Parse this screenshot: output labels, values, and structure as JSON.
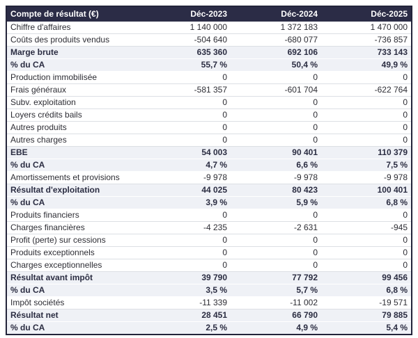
{
  "colors": {
    "header_bg": "#2b2c46",
    "header_text": "#ffffff",
    "row_bg": "#ffffff",
    "emphasis_row_bg": "#eff1f6",
    "text": "#2d2d34",
    "emphasis_text": "#2b2d42",
    "border_dark": "#23243a",
    "row_divider": "#dcdfe4"
  },
  "table": {
    "columns": [
      "Compte de résultat (€)",
      "Déc-2023",
      "Déc-2024",
      "Déc-2025"
    ],
    "rows": [
      {
        "label": "Chiffre d'affaires",
        "values": [
          "1 140 000",
          "1 372 183",
          "1 470 000"
        ],
        "emphasis": false
      },
      {
        "label": "Coûts des produits vendus",
        "values": [
          "-504 640",
          "-680 077",
          "-736 857"
        ],
        "emphasis": false
      },
      {
        "label": "Marge brute",
        "values": [
          "635 360",
          "692 106",
          "733 143"
        ],
        "emphasis": true
      },
      {
        "label": "% du CA",
        "values": [
          "55,7 %",
          "50,4 %",
          "49,9 %"
        ],
        "emphasis": true
      },
      {
        "label": "Production immobilisée",
        "values": [
          "0",
          "0",
          "0"
        ],
        "emphasis": false
      },
      {
        "label": "Frais généraux",
        "values": [
          "-581 357",
          "-601 704",
          "-622 764"
        ],
        "emphasis": false
      },
      {
        "label": "Subv. exploitation",
        "values": [
          "0",
          "0",
          "0"
        ],
        "emphasis": false
      },
      {
        "label": "Loyers crédits bails",
        "values": [
          "0",
          "0",
          "0"
        ],
        "emphasis": false
      },
      {
        "label": "Autres produits",
        "values": [
          "0",
          "0",
          "0"
        ],
        "emphasis": false
      },
      {
        "label": "Autres charges",
        "values": [
          "0",
          "0",
          "0"
        ],
        "emphasis": false
      },
      {
        "label": "EBE",
        "values": [
          "54 003",
          "90 401",
          "110 379"
        ],
        "emphasis": true
      },
      {
        "label": "% du CA",
        "values": [
          "4,7 %",
          "6,6 %",
          "7,5 %"
        ],
        "emphasis": true
      },
      {
        "label": "Amortissements et provisions",
        "values": [
          "-9 978",
          "-9 978",
          "-9 978"
        ],
        "emphasis": false
      },
      {
        "label": "Résultat d'exploitation",
        "values": [
          "44 025",
          "80 423",
          "100 401"
        ],
        "emphasis": true
      },
      {
        "label": "% du CA",
        "values": [
          "3,9 %",
          "5,9 %",
          "6,8 %"
        ],
        "emphasis": true
      },
      {
        "label": "Produits financiers",
        "values": [
          "0",
          "0",
          "0"
        ],
        "emphasis": false
      },
      {
        "label": "Charges financières",
        "values": [
          "-4 235",
          "-2 631",
          "-945"
        ],
        "emphasis": false
      },
      {
        "label": "Profit (perte) sur cessions",
        "values": [
          "0",
          "0",
          "0"
        ],
        "emphasis": false
      },
      {
        "label": "Produits exceptionnels",
        "values": [
          "0",
          "0",
          "0"
        ],
        "emphasis": false
      },
      {
        "label": "Charges exceptionnelles",
        "values": [
          "0",
          "0",
          "0"
        ],
        "emphasis": false
      },
      {
        "label": "Résultat avant impôt",
        "values": [
          "39 790",
          "77 792",
          "99 456"
        ],
        "emphasis": true
      },
      {
        "label": "% du CA",
        "values": [
          "3,5 %",
          "5,7 %",
          "6,8 %"
        ],
        "emphasis": true
      },
      {
        "label": "Impôt sociétés",
        "values": [
          "-11 339",
          "-11 002",
          "-19 571"
        ],
        "emphasis": false
      },
      {
        "label": "Résultat net",
        "values": [
          "28 451",
          "66 790",
          "79 885"
        ],
        "emphasis": true
      },
      {
        "label": "% du CA",
        "values": [
          "2,5 %",
          "4,9 %",
          "5,4 %"
        ],
        "emphasis": true
      }
    ]
  }
}
